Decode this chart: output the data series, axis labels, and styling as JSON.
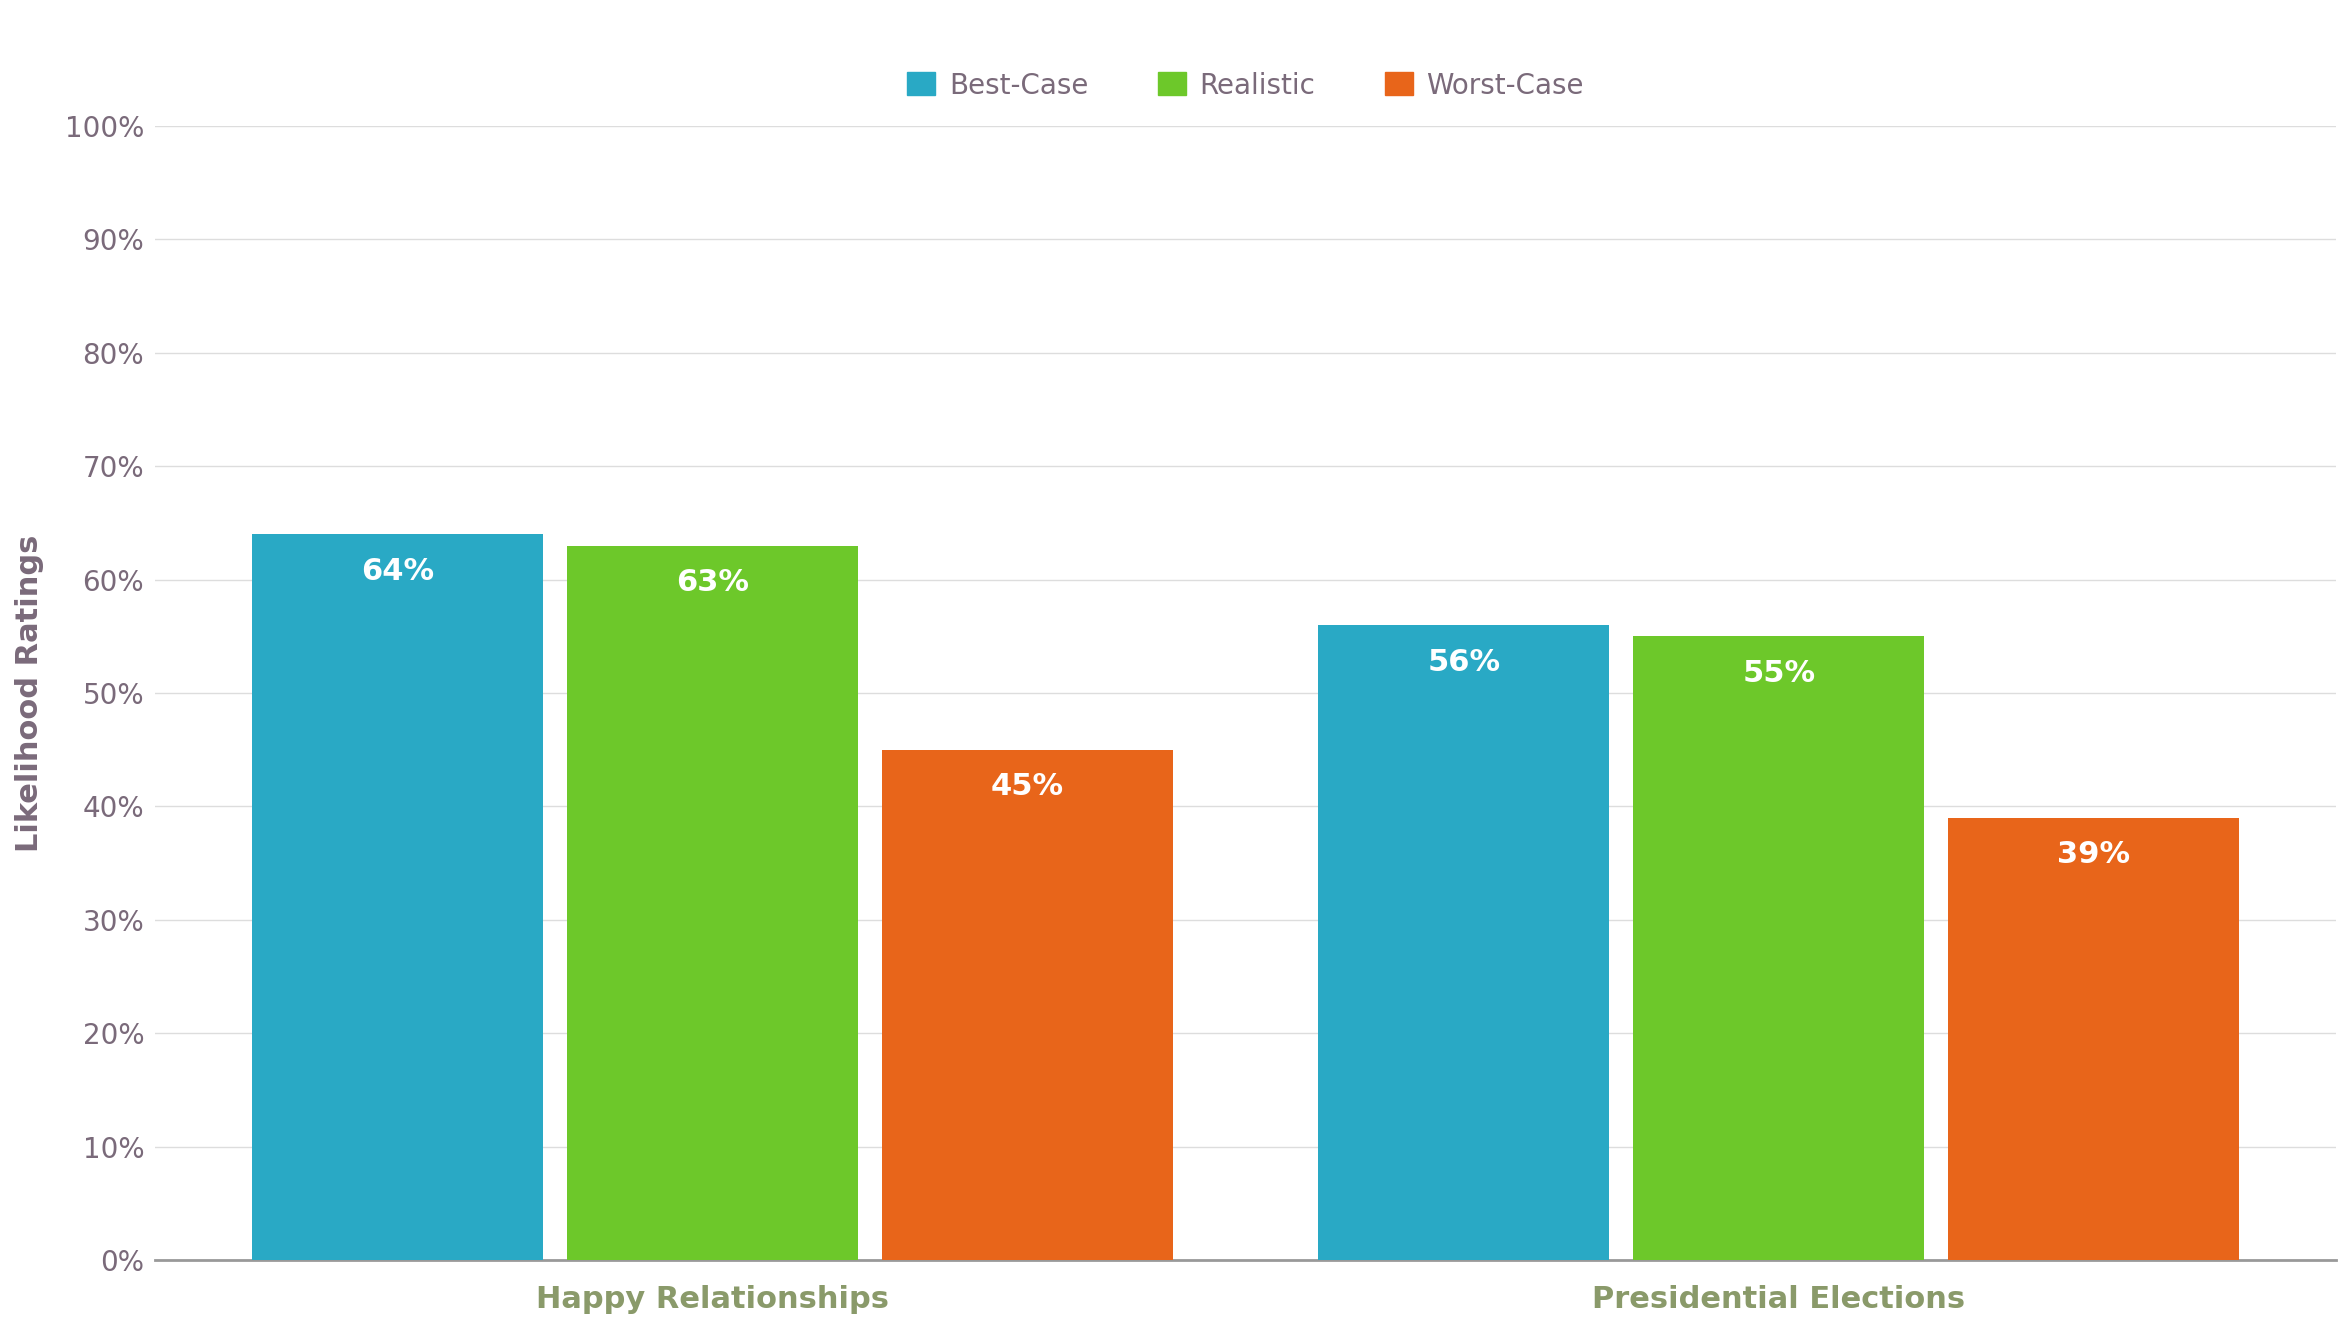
{
  "categories": [
    "Happy Relationships",
    "Presidential Elections"
  ],
  "series": {
    "Best-Case": [
      64,
      56
    ],
    "Realistic": [
      63,
      55
    ],
    "Worst-Case": [
      45,
      39
    ]
  },
  "colors": {
    "Best-Case": "#29A9C5",
    "Realistic": "#6DC82A",
    "Worst-Case": "#E8651A"
  },
  "ylabel": "Likelihood Ratings",
  "ylim": [
    0,
    100
  ],
  "yticks": [
    0,
    10,
    20,
    30,
    40,
    50,
    60,
    70,
    80,
    90,
    100
  ],
  "background_color": "#ffffff",
  "plot_bg_color": "#ffffff",
  "text_color": "#7A6A7A",
  "bar_label_color": "#ffffff",
  "category_label_color": "#8A9A6A",
  "ylabel_color": "#7A6A7A",
  "legend_labels": [
    "Best-Case",
    "Realistic",
    "Worst-Case"
  ],
  "bar_width": 0.12,
  "bar_gap": 0.01,
  "group_positions": [
    0.28,
    0.72
  ],
  "label_fontsize": 22,
  "tick_fontsize": 20,
  "legend_fontsize": 20,
  "ylabel_fontsize": 22,
  "bar_value_fontsize": 22,
  "grid_color": "#dddddd",
  "spine_color": "#999999"
}
